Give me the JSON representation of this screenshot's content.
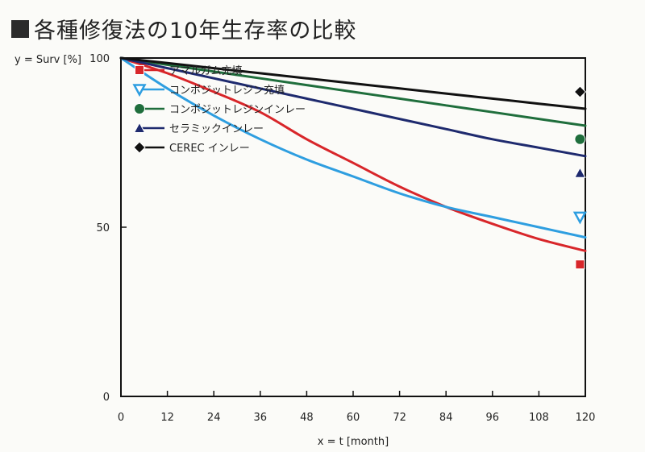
{
  "title": "■各種修復法の10年生存率の比較",
  "title_text": "各種修復法の10年生存率の比較",
  "chart_data": {
    "type": "line",
    "title": "各種修復法の10年生存率の比較",
    "xlabel": "x = t [month]",
    "ylabel": "y = Surv [%]",
    "xlim": [
      0,
      120
    ],
    "ylim": [
      0,
      100
    ],
    "xticks": [
      0,
      12,
      24,
      36,
      48,
      60,
      72,
      84,
      96,
      108,
      120
    ],
    "yticks": [
      0,
      50,
      100
    ],
    "grid": false,
    "legend_position": "top-left",
    "series": [
      {
        "name": "アマルガム充填",
        "color": "#d8262a",
        "marker": "square",
        "x": [
          0,
          12,
          24,
          36,
          48,
          60,
          72,
          84,
          96,
          108,
          120
        ],
        "y": [
          100,
          95.5,
          90,
          84,
          76,
          69,
          62,
          56,
          51,
          46.5,
          43
        ],
        "endpoint": {
          "x": 118,
          "y": 39
        }
      },
      {
        "name": "コンポジットレジン充填",
        "color": "#2e9ee0",
        "marker": "triangle-down",
        "x": [
          0,
          12,
          24,
          36,
          48,
          60,
          72,
          84,
          96,
          108,
          120
        ],
        "y": [
          100,
          91,
          83,
          76,
          70,
          65,
          60,
          56,
          53,
          50,
          47
        ],
        "endpoint": {
          "x": 118,
          "y": 53
        }
      },
      {
        "name": "コンポジットレジンインレー",
        "color": "#1f6e3c",
        "marker": "circle",
        "x": [
          0,
          12,
          24,
          36,
          48,
          60,
          72,
          84,
          96,
          108,
          120
        ],
        "y": [
          100,
          98,
          96,
          94,
          92,
          90,
          88,
          86,
          84,
          82,
          80
        ],
        "endpoint": {
          "x": 118,
          "y": 76
        }
      },
      {
        "name": "セラミックインレー",
        "color": "#1e2a6e",
        "marker": "triangle-up",
        "x": [
          0,
          12,
          24,
          36,
          48,
          60,
          72,
          84,
          96,
          108,
          120
        ],
        "y": [
          100,
          97,
          94,
          91,
          88,
          85,
          82,
          79,
          76,
          73.5,
          71
        ],
        "endpoint": {
          "x": 118,
          "y": 66
        }
      },
      {
        "name": "CEREC インレー",
        "color": "#111111",
        "marker": "diamond",
        "x": [
          0,
          12,
          24,
          36,
          48,
          60,
          72,
          84,
          96,
          108,
          120
        ],
        "y": [
          100,
          98.5,
          97,
          95.5,
          94,
          92.5,
          91,
          89.5,
          88,
          86.5,
          85
        ],
        "endpoint": {
          "x": 118,
          "y": 90
        }
      }
    ]
  }
}
